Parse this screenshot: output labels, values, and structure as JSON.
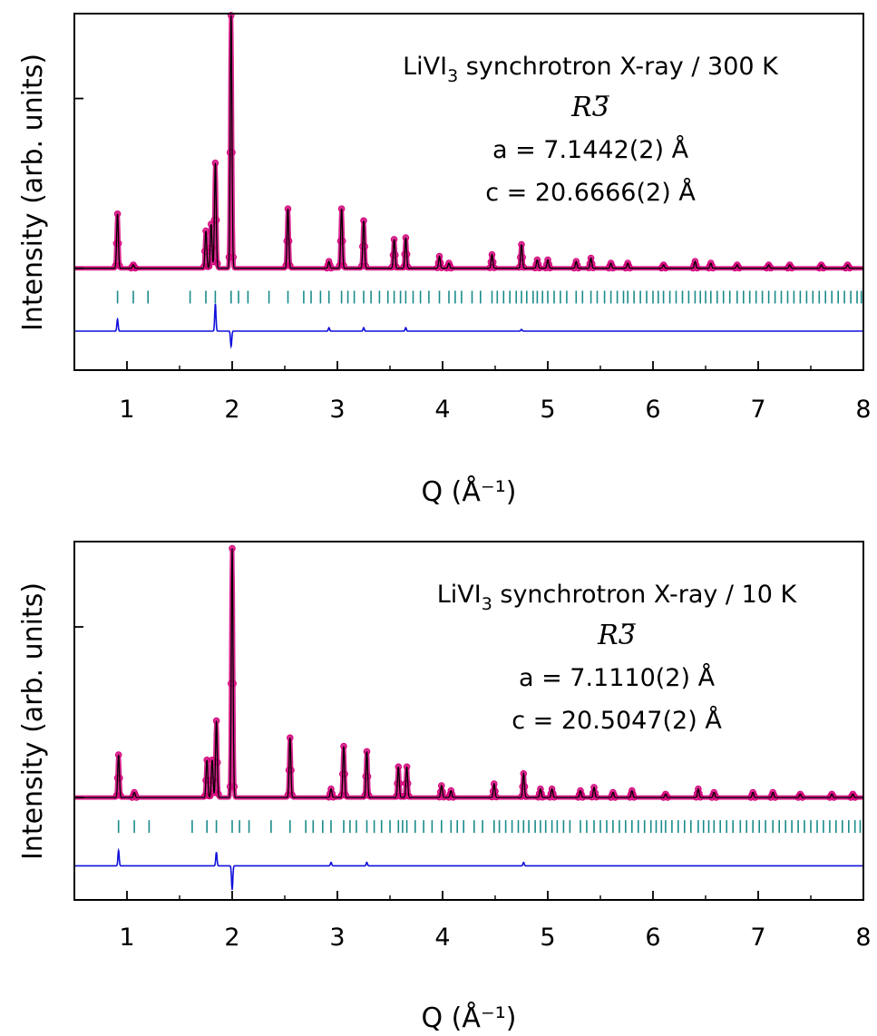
{
  "colors": {
    "observed": "#d4007a",
    "calculated": "#000000",
    "difference": "#1111dd",
    "bragg": "#1a8a8a",
    "axis": "#000000"
  },
  "chart_data": [
    {
      "type": "line",
      "panel": "top",
      "title": "",
      "xlabel": "Q (Å⁻¹)",
      "ylabel": "Intensity (arb. units)",
      "xlim": [
        0.5,
        8
      ],
      "ylim": [
        -0.6,
        1.5
      ],
      "x_ticks": [
        1,
        2,
        3,
        4,
        5,
        6,
        7,
        8
      ],
      "grid": false,
      "annotation": {
        "line1_prefix": "LiVI",
        "line1_sub": "3",
        "line1_suffix": " synchrotron X-ray / 300 K",
        "space_group": "R3̅",
        "lattice_a": "a = 7.1442(2) Å",
        "lattice_c": "c = 20.6666(2) Å"
      },
      "baseline": 0.0,
      "difference_offset": -0.37,
      "bragg_row_y": -0.17,
      "peaks": [
        {
          "q": 0.91,
          "h": 0.32
        },
        {
          "q": 1.06,
          "h": 0.02
        },
        {
          "q": 1.75,
          "h": 0.22
        },
        {
          "q": 1.8,
          "h": 0.26
        },
        {
          "q": 1.84,
          "h": 0.62
        },
        {
          "q": 1.99,
          "h": 1.49
        },
        {
          "q": 2.53,
          "h": 0.35
        },
        {
          "q": 2.92,
          "h": 0.04
        },
        {
          "q": 3.04,
          "h": 0.35
        },
        {
          "q": 3.25,
          "h": 0.28
        },
        {
          "q": 3.54,
          "h": 0.17
        },
        {
          "q": 3.65,
          "h": 0.18
        },
        {
          "q": 3.97,
          "h": 0.07
        },
        {
          "q": 4.06,
          "h": 0.03
        },
        {
          "q": 4.47,
          "h": 0.08
        },
        {
          "q": 4.75,
          "h": 0.14
        },
        {
          "q": 4.9,
          "h": 0.05
        },
        {
          "q": 5.0,
          "h": 0.05
        },
        {
          "q": 5.27,
          "h": 0.04
        },
        {
          "q": 5.41,
          "h": 0.06
        },
        {
          "q": 5.6,
          "h": 0.03
        },
        {
          "q": 5.76,
          "h": 0.03
        },
        {
          "q": 6.1,
          "h": 0.02
        },
        {
          "q": 6.4,
          "h": 0.04
        },
        {
          "q": 6.55,
          "h": 0.03
        },
        {
          "q": 6.8,
          "h": 0.02
        },
        {
          "q": 7.1,
          "h": 0.02
        },
        {
          "q": 7.3,
          "h": 0.02
        },
        {
          "q": 7.6,
          "h": 0.02
        },
        {
          "q": 7.85,
          "h": 0.02
        }
      ],
      "difference_spikes": [
        {
          "q": 0.91,
          "d": 0.07
        },
        {
          "q": 1.84,
          "d": 0.16
        },
        {
          "q": 1.99,
          "d": -0.09
        },
        {
          "q": 2.92,
          "d": 0.02
        },
        {
          "q": 3.25,
          "d": 0.02
        },
        {
          "q": 3.65,
          "d": 0.02
        },
        {
          "q": 4.75,
          "d": 0.01
        }
      ],
      "bragg_ticks": [
        0.91,
        1.06,
        1.2,
        1.6,
        1.75,
        1.84,
        1.99,
        2.06,
        2.15,
        2.35,
        2.53,
        2.68,
        2.75,
        2.84,
        2.92,
        3.04,
        3.1,
        3.16,
        3.25,
        3.32,
        3.4,
        3.48,
        3.54,
        3.6,
        3.65,
        3.72,
        3.79,
        3.87,
        3.97,
        4.06,
        4.12,
        4.18,
        4.28,
        4.36,
        4.47,
        4.52,
        4.58,
        4.64,
        4.7,
        4.75,
        4.8,
        4.86,
        4.9,
        4.95,
        5.0,
        5.06,
        5.12,
        5.18,
        5.27,
        5.33,
        5.41,
        5.47,
        5.54,
        5.6,
        5.66,
        5.72,
        5.76,
        5.82,
        5.88,
        5.94,
        6.0,
        6.05,
        6.1,
        6.16,
        6.22,
        6.28,
        6.34,
        6.4,
        6.45,
        6.5,
        6.55,
        6.61,
        6.67,
        6.73,
        6.8,
        6.86,
        6.92,
        6.98,
        7.04,
        7.1,
        7.16,
        7.22,
        7.28,
        7.34,
        7.4,
        7.46,
        7.52,
        7.58,
        7.64,
        7.7,
        7.76,
        7.82,
        7.88,
        7.94,
        7.98
      ]
    },
    {
      "type": "line",
      "panel": "bottom",
      "title": "",
      "xlabel": "Q (Å⁻¹)",
      "ylabel": "Intensity (arb. units)",
      "xlim": [
        0.5,
        8
      ],
      "ylim": [
        -0.6,
        1.5
      ],
      "x_ticks": [
        1,
        2,
        3,
        4,
        5,
        6,
        7,
        8
      ],
      "grid": false,
      "annotation": {
        "line1_prefix": "LiVI",
        "line1_sub": "3",
        "line1_suffix": " synchrotron X-ray / 10 K",
        "space_group": "R3̅",
        "lattice_a": "a = 7.1110(2) Å",
        "lattice_c": "c = 20.5047(2) Å"
      },
      "baseline": 0.0,
      "difference_offset": -0.4,
      "bragg_row_y": -0.17,
      "peaks": [
        {
          "q": 0.92,
          "h": 0.25
        },
        {
          "q": 1.07,
          "h": 0.03
        },
        {
          "q": 1.76,
          "h": 0.22
        },
        {
          "q": 1.81,
          "h": 0.22
        },
        {
          "q": 1.85,
          "h": 0.45
        },
        {
          "q": 2.0,
          "h": 1.46
        },
        {
          "q": 2.55,
          "h": 0.35
        },
        {
          "q": 2.94,
          "h": 0.05
        },
        {
          "q": 3.06,
          "h": 0.3
        },
        {
          "q": 3.28,
          "h": 0.27
        },
        {
          "q": 3.58,
          "h": 0.18
        },
        {
          "q": 3.66,
          "h": 0.18
        },
        {
          "q": 3.99,
          "h": 0.07
        },
        {
          "q": 4.08,
          "h": 0.04
        },
        {
          "q": 4.49,
          "h": 0.08
        },
        {
          "q": 4.77,
          "h": 0.14
        },
        {
          "q": 4.93,
          "h": 0.05
        },
        {
          "q": 5.04,
          "h": 0.05
        },
        {
          "q": 5.31,
          "h": 0.04
        },
        {
          "q": 5.44,
          "h": 0.06
        },
        {
          "q": 5.62,
          "h": 0.03
        },
        {
          "q": 5.8,
          "h": 0.04
        },
        {
          "q": 6.12,
          "h": 0.02
        },
        {
          "q": 6.43,
          "h": 0.05
        },
        {
          "q": 6.58,
          "h": 0.03
        },
        {
          "q": 6.95,
          "h": 0.03
        },
        {
          "q": 7.14,
          "h": 0.03
        },
        {
          "q": 7.4,
          "h": 0.02
        },
        {
          "q": 7.7,
          "h": 0.02
        },
        {
          "q": 7.9,
          "h": 0.02
        }
      ],
      "difference_spikes": [
        {
          "q": 0.92,
          "d": 0.09
        },
        {
          "q": 1.85,
          "d": 0.08
        },
        {
          "q": 2.0,
          "d": -0.18
        },
        {
          "q": 2.0,
          "d": 0.04
        },
        {
          "q": 2.94,
          "d": 0.02
        },
        {
          "q": 3.28,
          "d": 0.02
        },
        {
          "q": 4.77,
          "d": 0.02
        }
      ],
      "bragg_ticks": [
        0.92,
        1.07,
        1.21,
        1.62,
        1.76,
        1.85,
        2.0,
        2.07,
        2.16,
        2.37,
        2.55,
        2.7,
        2.77,
        2.86,
        2.94,
        3.06,
        3.12,
        3.18,
        3.28,
        3.35,
        3.42,
        3.5,
        3.58,
        3.62,
        3.66,
        3.74,
        3.82,
        3.9,
        3.99,
        4.08,
        4.14,
        4.2,
        4.3,
        4.38,
        4.49,
        4.54,
        4.6,
        4.66,
        4.72,
        4.77,
        4.82,
        4.88,
        4.93,
        4.98,
        5.04,
        5.09,
        5.15,
        5.21,
        5.31,
        5.37,
        5.44,
        5.5,
        5.56,
        5.62,
        5.68,
        5.74,
        5.8,
        5.86,
        5.92,
        5.98,
        6.03,
        6.08,
        6.12,
        6.18,
        6.24,
        6.3,
        6.36,
        6.43,
        6.48,
        6.53,
        6.58,
        6.64,
        6.7,
        6.76,
        6.83,
        6.89,
        6.95,
        7.01,
        7.07,
        7.14,
        7.2,
        7.26,
        7.32,
        7.38,
        7.44,
        7.5,
        7.56,
        7.62,
        7.68,
        7.74,
        7.8,
        7.86,
        7.92,
        7.97
      ]
    }
  ]
}
